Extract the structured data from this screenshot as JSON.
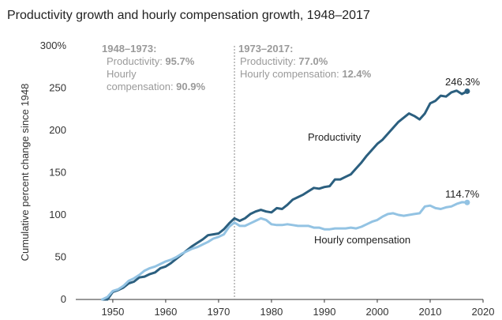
{
  "chart_data": {
    "type": "line",
    "title": "Productivity growth and hourly compensation growth, 1948–2017",
    "ylabel": "Cumulative percent change since 1948",
    "xlabel": "",
    "xlim": [
      1943,
      2020
    ],
    "ylim": [
      0,
      300
    ],
    "x_ticks": [
      1950,
      1960,
      1970,
      1980,
      1990,
      2000,
      2010,
      2020
    ],
    "x_tick_labels": [
      "1950",
      "1960",
      "1970",
      "1980",
      "1990",
      "2000",
      "2010",
      "2020"
    ],
    "y_ticks": [
      0,
      50,
      100,
      150,
      200,
      250,
      300
    ],
    "y_tick_labels": [
      "0",
      "50",
      "100",
      "150",
      "200",
      "250",
      "300%"
    ],
    "grid": false,
    "divider_year": 1973,
    "periods": [
      {
        "heading": "1948–1973:",
        "lines": [
          {
            "label": "Productivity: ",
            "value": "95.7%"
          },
          {
            "label": "Hourly",
            "value": ""
          },
          {
            "label": "compensation: ",
            "value": "90.9%"
          }
        ]
      },
      {
        "heading": "1973–2017:",
        "lines": [
          {
            "label": "Productivity: ",
            "value": "77.0%"
          },
          {
            "label": "Hourly compensation: ",
            "value": "12.4%"
          }
        ]
      }
    ],
    "series": [
      {
        "name": "Productivity",
        "color": "#2b5f7f",
        "end_label": "246.3%",
        "x": [
          1948,
          1949,
          1950,
          1951,
          1952,
          1953,
          1954,
          1955,
          1956,
          1957,
          1958,
          1959,
          1960,
          1961,
          1962,
          1963,
          1964,
          1965,
          1966,
          1967,
          1968,
          1969,
          1970,
          1971,
          1972,
          1973,
          1974,
          1975,
          1976,
          1977,
          1978,
          1979,
          1980,
          1981,
          1982,
          1983,
          1984,
          1985,
          1986,
          1987,
          1988,
          1989,
          1990,
          1991,
          1992,
          1993,
          1994,
          1995,
          1996,
          1997,
          1998,
          1999,
          2000,
          2001,
          2002,
          2003,
          2004,
          2005,
          2006,
          2007,
          2008,
          2009,
          2010,
          2011,
          2012,
          2013,
          2014,
          2015,
          2016,
          2017
        ],
        "values": [
          0,
          0,
          9,
          11,
          14,
          19,
          21,
          26,
          27,
          30,
          32,
          37,
          39,
          43,
          48,
          53,
          58,
          63,
          67,
          71,
          76,
          77,
          78,
          83,
          90,
          96,
          93,
          96,
          101,
          104,
          106,
          104,
          103,
          108,
          107,
          112,
          118,
          121,
          124,
          128,
          132,
          131,
          133,
          134,
          142,
          142,
          145,
          148,
          155,
          162,
          170,
          177,
          184,
          189,
          196,
          203,
          210,
          215,
          220,
          217,
          213,
          220,
          232,
          235,
          241,
          240,
          245,
          247,
          243,
          246.3
        ]
      },
      {
        "name": "Hourly compensation",
        "color": "#93c3e3",
        "end_label": "114.7%",
        "x": [
          1948,
          1949,
          1950,
          1951,
          1952,
          1953,
          1954,
          1955,
          1956,
          1957,
          1958,
          1959,
          1960,
          1961,
          1962,
          1963,
          1964,
          1965,
          1966,
          1967,
          1968,
          1969,
          1970,
          1971,
          1972,
          1973,
          1974,
          1975,
          1976,
          1977,
          1978,
          1979,
          1980,
          1981,
          1982,
          1983,
          1984,
          1985,
          1986,
          1987,
          1988,
          1989,
          1990,
          1991,
          1992,
          1993,
          1994,
          1995,
          1996,
          1997,
          1998,
          1999,
          2000,
          2001,
          2002,
          2003,
          2004,
          2005,
          2006,
          2007,
          2008,
          2009,
          2010,
          2011,
          2012,
          2013,
          2014,
          2015,
          2016,
          2017
        ],
        "values": [
          0,
          3,
          10,
          12,
          16,
          22,
          25,
          29,
          34,
          37,
          39,
          42,
          45,
          47,
          50,
          54,
          57,
          60,
          62,
          65,
          68,
          72,
          74,
          77,
          86,
          91,
          87,
          87,
          90,
          93,
          96,
          94,
          89,
          88,
          88,
          89,
          88,
          87,
          87,
          87,
          85,
          85,
          83,
          83,
          84,
          84,
          84,
          85,
          84,
          86,
          89,
          92,
          94,
          98,
          101,
          102,
          100,
          99,
          100,
          101,
          102,
          110,
          111,
          108,
          107,
          109,
          110,
          113,
          115,
          114.7
        ]
      }
    ]
  }
}
